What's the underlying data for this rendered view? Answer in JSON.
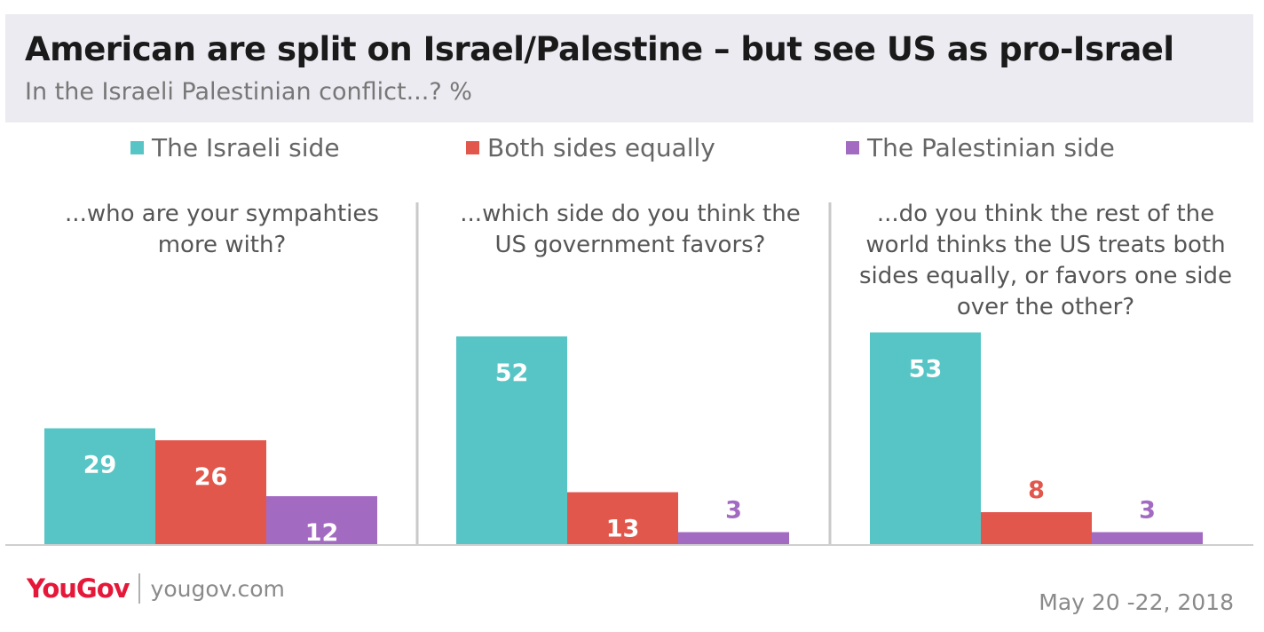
{
  "header": {
    "title": "American are split on Israel/Palestine – but see US as pro-Israel",
    "subtitle": "In the Israeli Palestinian conflict...? %"
  },
  "legend": [
    {
      "label": "The Israeli side",
      "color": "#57c5c5"
    },
    {
      "label": "Both sides equally",
      "color": "#e2574c"
    },
    {
      "label": "The Palestinian side",
      "color": "#a36ac2"
    }
  ],
  "chart_data": {
    "type": "bar",
    "series": [
      {
        "name": "The Israeli side",
        "color": "#57c5c5"
      },
      {
        "name": "Both sides equally",
        "color": "#e2574c"
      },
      {
        "name": "The Palestinian side",
        "color": "#a36ac2"
      }
    ],
    "panels": [
      {
        "question": "...who are your sympahties more with?",
        "values": [
          29,
          26,
          12
        ]
      },
      {
        "question": "...which side do you think the US government favors?",
        "values": [
          52,
          13,
          3
        ]
      },
      {
        "question": "...do you think the rest of the world thinks the US treats both sides equally, or favors one side over the other?",
        "values": [
          53,
          8,
          3
        ]
      }
    ]
  },
  "footer": {
    "logo": "YouGov",
    "site": "yougov.com",
    "date": "May 20 -22, 2018"
  }
}
